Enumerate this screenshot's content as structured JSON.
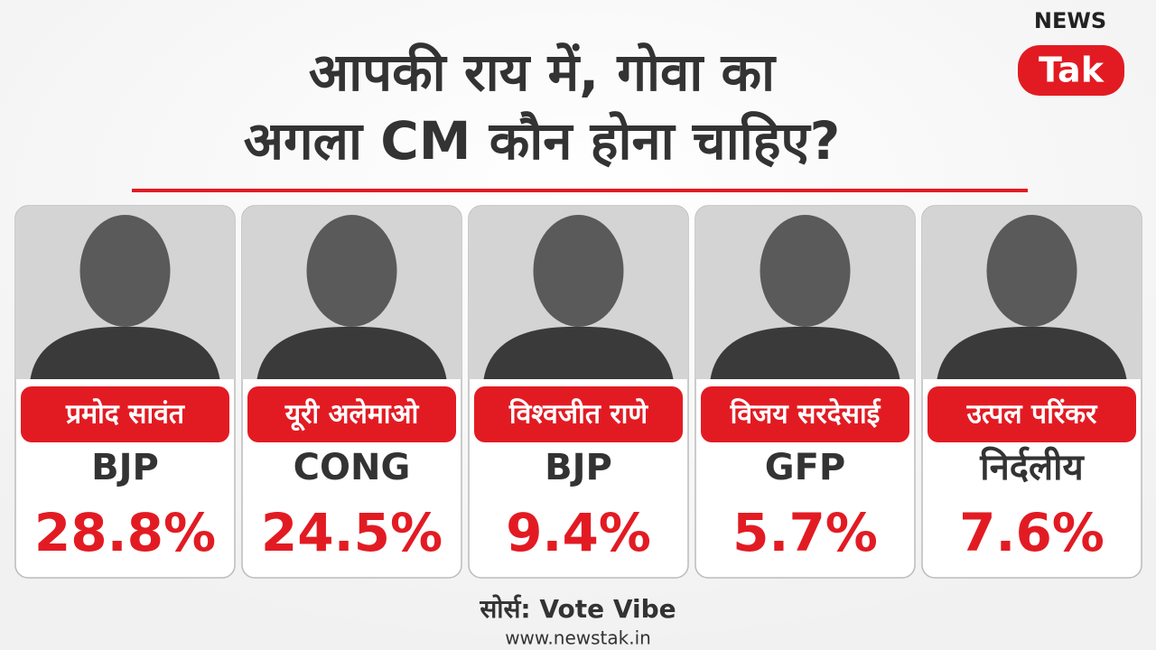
{
  "logo": {
    "top": "NEWS",
    "bottom": "Tak"
  },
  "header": {
    "title": [
      "आपकी राय में, गोवा का",
      "अगला CM कौन होना चाहिए?"
    ]
  },
  "cards": [
    {
      "name": "प्रमोद सावंत",
      "party": "BJP",
      "share": "28.8%"
    },
    {
      "name": "यूरी अलेमाओ",
      "party": "CONG",
      "share": "24.5%"
    },
    {
      "name": "विश्वजीत राणे",
      "party": "BJP",
      "share": "9.4%"
    },
    {
      "name": "विजय सरदेसाई",
      "party": "GFP",
      "share": "5.7%"
    },
    {
      "name": "उत्पल परिंकर",
      "party": "निर्दलीय",
      "share": "7.6%"
    }
  ],
  "footer": {
    "source": "सोर्स: Vote Vibe",
    "url": "www.newstak.in"
  }
}
